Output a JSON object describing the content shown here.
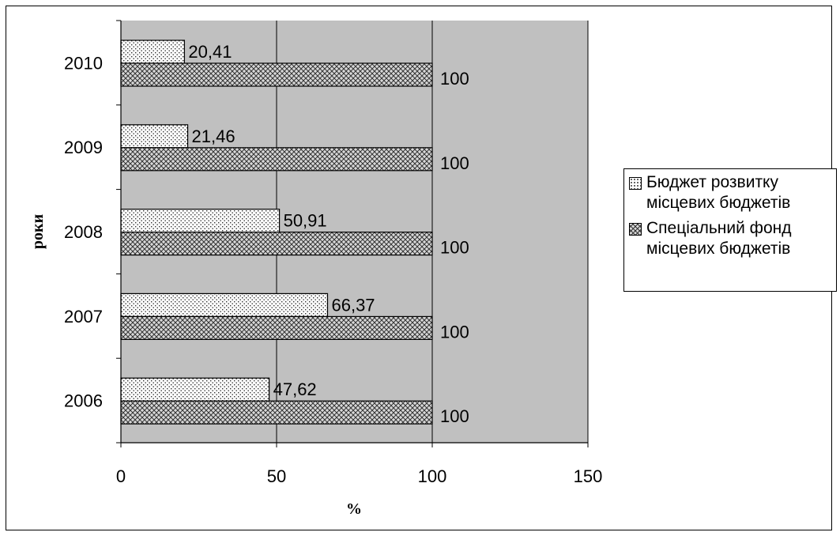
{
  "chart_data": {
    "type": "bar",
    "orientation": "horizontal",
    "categories": [
      "2006",
      "2007",
      "2008",
      "2009",
      "2010"
    ],
    "series": [
      {
        "name": "Бюджет розвитку\nмісцевих бюджетів",
        "values": [
          47.62,
          66.37,
          50.91,
          21.46,
          20.41
        ],
        "data_labels": [
          "47,62",
          "66,37",
          "50,91",
          "21,46",
          "20,41"
        ],
        "pattern": "dots"
      },
      {
        "name": "Спеціальний фонд\nмісцевих бюджетів",
        "values": [
          100,
          100,
          100,
          100,
          100
        ],
        "data_labels": [
          "100",
          "100",
          "100",
          "100",
          "100"
        ],
        "pattern": "crosshatch"
      }
    ],
    "xlim": [
      0,
      150
    ],
    "x_ticks": [
      0,
      50,
      100,
      150
    ],
    "x_tick_labels": [
      "0",
      "50",
      "100",
      "150"
    ],
    "xlabel": "%",
    "ylabel": "роки",
    "grid": "vertical",
    "plot_background": "#c0c0c0",
    "legend_position": "right"
  }
}
